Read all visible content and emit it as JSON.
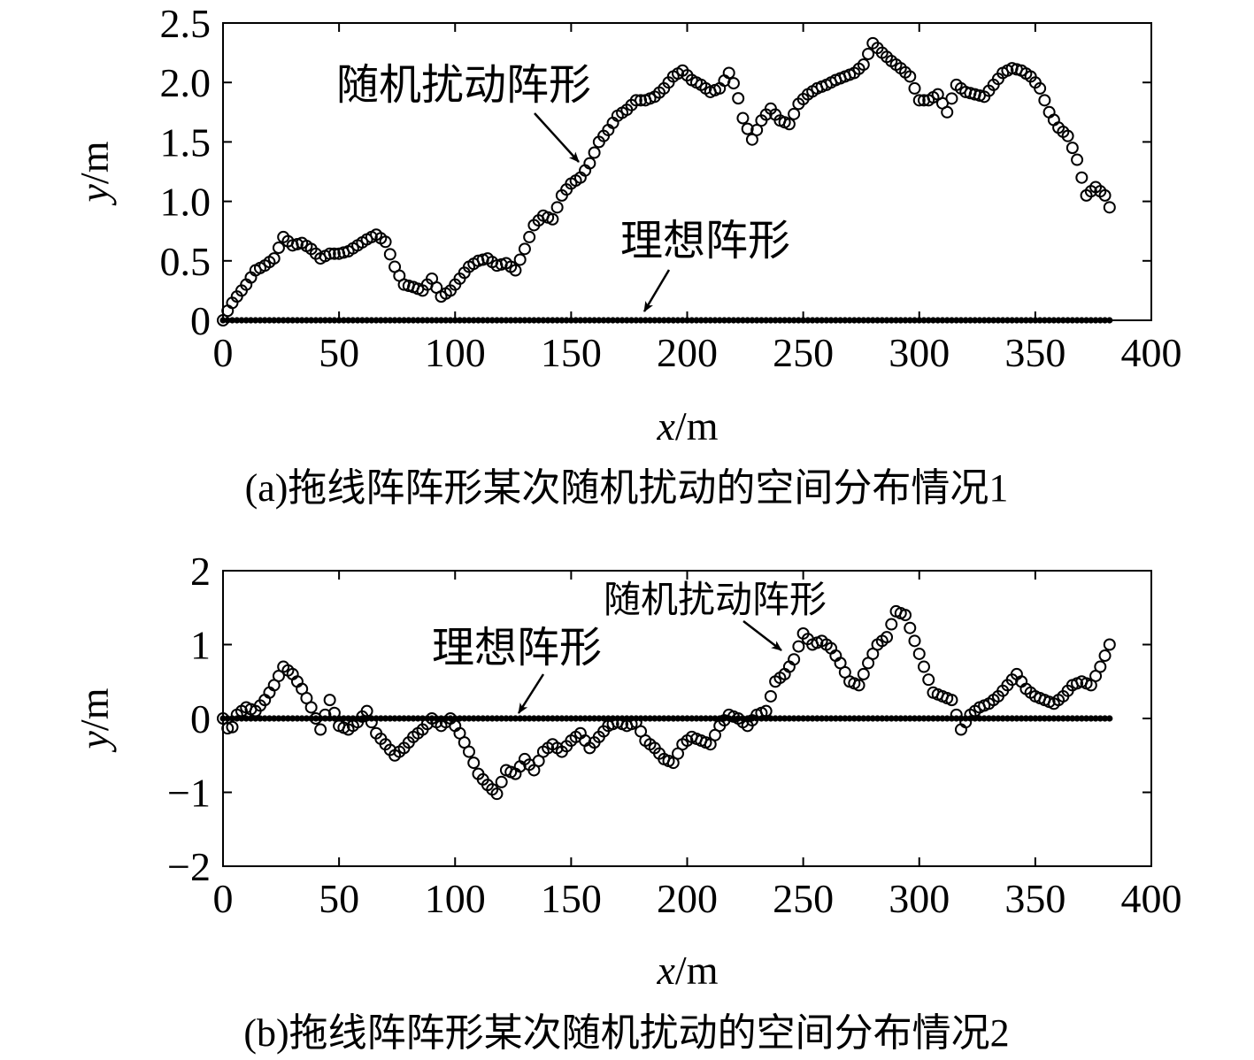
{
  "chart_data": [
    {
      "type": "scatter",
      "caption": "(a)拖线阵阵形某次随机扰动的空间分布情况1",
      "xlabel_var": "x",
      "xlabel_unit": "/m",
      "ylabel_var": "y",
      "ylabel_unit": "/m",
      "xlim": [
        0,
        400
      ],
      "ylim": [
        0,
        2.5
      ],
      "xticks": [
        "0",
        "50",
        "100",
        "150",
        "200",
        "250",
        "300",
        "350",
        "400"
      ],
      "yticks": [
        "0",
        "0.5",
        "1.0",
        "1.5",
        "2.0",
        "2.5"
      ],
      "grid": false,
      "annotations": [
        "随机扰动阵形",
        "理想阵形"
      ],
      "series": [
        {
          "name": "随机扰动阵形",
          "marker": "open-circle",
          "x_step": 2,
          "x_start": 0,
          "x_end": 382,
          "y_control": [
            [
              0,
              0.0
            ],
            [
              3,
              0.12
            ],
            [
              6,
              0.2
            ],
            [
              10,
              0.3
            ],
            [
              14,
              0.42
            ],
            [
              18,
              0.46
            ],
            [
              22,
              0.52
            ],
            [
              26,
              0.7
            ],
            [
              30,
              0.63
            ],
            [
              34,
              0.65
            ],
            [
              38,
              0.6
            ],
            [
              42,
              0.52
            ],
            [
              46,
              0.56
            ],
            [
              50,
              0.56
            ],
            [
              54,
              0.58
            ],
            [
              58,
              0.63
            ],
            [
              62,
              0.68
            ],
            [
              66,
              0.72
            ],
            [
              70,
              0.66
            ],
            [
              74,
              0.45
            ],
            [
              78,
              0.3
            ],
            [
              82,
              0.28
            ],
            [
              86,
              0.25
            ],
            [
              90,
              0.35
            ],
            [
              94,
              0.2
            ],
            [
              98,
              0.25
            ],
            [
              102,
              0.35
            ],
            [
              106,
              0.45
            ],
            [
              110,
              0.5
            ],
            [
              114,
              0.52
            ],
            [
              118,
              0.46
            ],
            [
              122,
              0.48
            ],
            [
              126,
              0.42
            ],
            [
              130,
              0.6
            ],
            [
              134,
              0.8
            ],
            [
              138,
              0.88
            ],
            [
              142,
              0.85
            ],
            [
              146,
              1.05
            ],
            [
              150,
              1.15
            ],
            [
              154,
              1.2
            ],
            [
              158,
              1.32
            ],
            [
              162,
              1.5
            ],
            [
              166,
              1.6
            ],
            [
              170,
              1.72
            ],
            [
              174,
              1.77
            ],
            [
              178,
              1.85
            ],
            [
              182,
              1.85
            ],
            [
              186,
              1.88
            ],
            [
              190,
              1.95
            ],
            [
              194,
              2.05
            ],
            [
              198,
              2.1
            ],
            [
              202,
              2.02
            ],
            [
              206,
              1.98
            ],
            [
              210,
              1.92
            ],
            [
              214,
              1.95
            ],
            [
              218,
              2.08
            ],
            [
              221,
              1.95
            ],
            [
              224,
              1.7
            ],
            [
              228,
              1.52
            ],
            [
              232,
              1.68
            ],
            [
              236,
              1.78
            ],
            [
              240,
              1.68
            ],
            [
              244,
              1.65
            ],
            [
              248,
              1.82
            ],
            [
              252,
              1.9
            ],
            [
              256,
              1.95
            ],
            [
              260,
              1.98
            ],
            [
              264,
              2.02
            ],
            [
              268,
              2.05
            ],
            [
              272,
              2.08
            ],
            [
              276,
              2.15
            ],
            [
              280,
              2.33
            ],
            [
              284,
              2.25
            ],
            [
              288,
              2.18
            ],
            [
              292,
              2.12
            ],
            [
              296,
              2.05
            ],
            [
              300,
              1.85
            ],
            [
              304,
              1.85
            ],
            [
              308,
              1.9
            ],
            [
              312,
              1.75
            ],
            [
              316,
              1.98
            ],
            [
              320,
              1.92
            ],
            [
              324,
              1.9
            ],
            [
              328,
              1.88
            ],
            [
              332,
              1.98
            ],
            [
              336,
              2.08
            ],
            [
              340,
              2.12
            ],
            [
              344,
              2.1
            ],
            [
              348,
              2.05
            ],
            [
              352,
              1.95
            ],
            [
              356,
              1.75
            ],
            [
              360,
              1.62
            ],
            [
              364,
              1.55
            ],
            [
              368,
              1.35
            ],
            [
              372,
              1.05
            ],
            [
              376,
              1.12
            ],
            [
              380,
              1.05
            ],
            [
              382,
              0.95
            ]
          ]
        },
        {
          "name": "理想阵形",
          "marker": "filled-dot",
          "x_step": 2,
          "x_start": 0,
          "x_end": 382,
          "y_constant": 0
        }
      ]
    },
    {
      "type": "scatter",
      "caption": "(b)拖线阵阵形某次随机扰动的空间分布情况2",
      "xlabel_var": "x",
      "xlabel_unit": "/m",
      "ylabel_var": "y",
      "ylabel_unit": "/m",
      "xlim": [
        0,
        400
      ],
      "ylim": [
        -2,
        2
      ],
      "xticks": [
        "0",
        "50",
        "100",
        "150",
        "200",
        "250",
        "300",
        "350",
        "400"
      ],
      "yticks": [
        "-2",
        "-1",
        "0",
        "1",
        "2"
      ],
      "grid": false,
      "annotations": [
        "随机扰动阵形",
        "理想阵形"
      ],
      "series": [
        {
          "name": "随机扰动阵形",
          "marker": "open-circle",
          "x_step": 2,
          "x_start": 0,
          "x_end": 382,
          "y_control": [
            [
              0,
              0.0
            ],
            [
              3,
              -0.2
            ],
            [
              6,
              0.05
            ],
            [
              10,
              0.15
            ],
            [
              14,
              0.1
            ],
            [
              18,
              0.25
            ],
            [
              22,
              0.45
            ],
            [
              26,
              0.7
            ],
            [
              30,
              0.6
            ],
            [
              34,
              0.4
            ],
            [
              38,
              0.15
            ],
            [
              42,
              -0.15
            ],
            [
              46,
              0.25
            ],
            [
              50,
              -0.1
            ],
            [
              54,
              -0.15
            ],
            [
              58,
              -0.05
            ],
            [
              62,
              0.1
            ],
            [
              66,
              -0.2
            ],
            [
              70,
              -0.35
            ],
            [
              74,
              -0.5
            ],
            [
              78,
              -0.4
            ],
            [
              82,
              -0.25
            ],
            [
              86,
              -0.15
            ],
            [
              90,
              0.0
            ],
            [
              94,
              -0.1
            ],
            [
              98,
              0.0
            ],
            [
              102,
              -0.2
            ],
            [
              106,
              -0.45
            ],
            [
              110,
              -0.75
            ],
            [
              114,
              -0.9
            ],
            [
              118,
              -1.02
            ],
            [
              122,
              -0.7
            ],
            [
              126,
              -0.75
            ],
            [
              130,
              -0.55
            ],
            [
              134,
              -0.7
            ],
            [
              138,
              -0.45
            ],
            [
              142,
              -0.35
            ],
            [
              146,
              -0.45
            ],
            [
              150,
              -0.3
            ],
            [
              154,
              -0.2
            ],
            [
              158,
              -0.4
            ],
            [
              162,
              -0.25
            ],
            [
              166,
              -0.1
            ],
            [
              170,
              -0.05
            ],
            [
              174,
              -0.1
            ],
            [
              178,
              -0.05
            ],
            [
              182,
              -0.3
            ],
            [
              186,
              -0.4
            ],
            [
              190,
              -0.55
            ],
            [
              194,
              -0.6
            ],
            [
              198,
              -0.35
            ],
            [
              202,
              -0.25
            ],
            [
              206,
              -0.3
            ],
            [
              210,
              -0.35
            ],
            [
              214,
              -0.1
            ],
            [
              218,
              0.05
            ],
            [
              222,
              0.0
            ],
            [
              226,
              -0.1
            ],
            [
              230,
              0.05
            ],
            [
              234,
              0.1
            ],
            [
              238,
              0.5
            ],
            [
              242,
              0.6
            ],
            [
              246,
              0.8
            ],
            [
              250,
              1.15
            ],
            [
              254,
              1.0
            ],
            [
              258,
              1.05
            ],
            [
              262,
              0.95
            ],
            [
              266,
              0.75
            ],
            [
              270,
              0.5
            ],
            [
              274,
              0.45
            ],
            [
              278,
              0.75
            ],
            [
              282,
              1.0
            ],
            [
              286,
              1.1
            ],
            [
              290,
              1.45
            ],
            [
              294,
              1.4
            ],
            [
              298,
              1.05
            ],
            [
              302,
              0.7
            ],
            [
              306,
              0.35
            ],
            [
              310,
              0.3
            ],
            [
              314,
              0.25
            ],
            [
              318,
              -0.15
            ],
            [
              322,
              0.05
            ],
            [
              326,
              0.15
            ],
            [
              330,
              0.2
            ],
            [
              334,
              0.3
            ],
            [
              338,
              0.45
            ],
            [
              342,
              0.6
            ],
            [
              346,
              0.4
            ],
            [
              350,
              0.3
            ],
            [
              354,
              0.25
            ],
            [
              358,
              0.2
            ],
            [
              362,
              0.3
            ],
            [
              366,
              0.45
            ],
            [
              370,
              0.5
            ],
            [
              374,
              0.45
            ],
            [
              378,
              0.7
            ],
            [
              382,
              1.0
            ]
          ]
        },
        {
          "name": "理想阵形",
          "marker": "filled-dot",
          "x_step": 2,
          "x_start": 0,
          "x_end": 382,
          "y_constant": 0
        }
      ]
    }
  ]
}
